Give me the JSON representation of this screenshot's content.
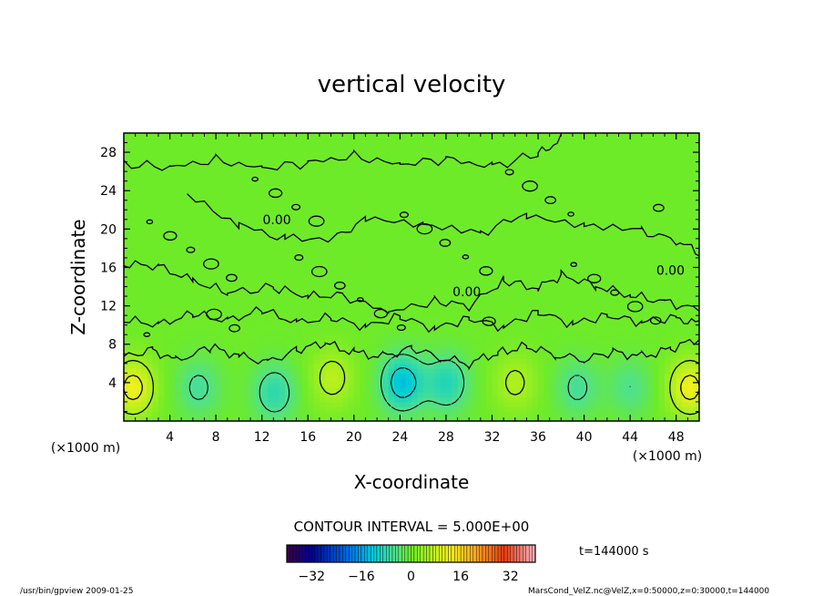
{
  "chart_data": {
    "type": "heatmap",
    "title": "vertical velocity",
    "xlabel": "X-coordinate",
    "ylabel": "Z-coordinate",
    "x_unit_label": "(×1000 m)",
    "y_unit_label": "(×1000 m)",
    "xlim": [
      0,
      50
    ],
    "ylim": [
      0,
      30
    ],
    "x_ticks": [
      4,
      8,
      12,
      16,
      20,
      24,
      28,
      32,
      36,
      40,
      44,
      48
    ],
    "y_ticks": [
      4,
      8,
      12,
      16,
      20,
      24,
      28
    ],
    "contour_interval_text": "CONTOUR INTERVAL = 5.000E+00",
    "contour_labels": [
      {
        "text": "0.00",
        "x": 13.3,
        "z": 21.0
      },
      {
        "text": "0.00",
        "x": 29.8,
        "z": 13.5
      },
      {
        "text": "0.00",
        "x": 47.5,
        "z": 15.7
      }
    ],
    "colorbar": {
      "range": [
        -40,
        40
      ],
      "ticks": [
        -32,
        -16,
        0,
        16,
        32
      ]
    },
    "time_label": "t=144000 s",
    "footer_left": "/usr/bin/gpview   2009-01-25",
    "footer_right": "MarsCond_VelZ.nc@VelZ,x=0:50000,z=0:30000,t=144000",
    "cells": [
      {
        "x": 0.8,
        "z": 3.5,
        "w": 12
      },
      {
        "x": 49.2,
        "z": 3.5,
        "w": 12
      },
      {
        "x": 6.5,
        "z": 3.5,
        "w": -6
      },
      {
        "x": 13.1,
        "z": 3.0,
        "w": -8
      },
      {
        "x": 18.1,
        "z": 4.5,
        "w": 7
      },
      {
        "x": 24.2,
        "z": 4.0,
        "w": -13
      },
      {
        "x": 28.1,
        "z": 4.0,
        "w": -9
      },
      {
        "x": 34.0,
        "z": 4.0,
        "w": 6
      },
      {
        "x": 39.4,
        "z": 3.5,
        "w": -6
      },
      {
        "x": 44.0,
        "z": 3.5,
        "w": -5
      }
    ]
  }
}
